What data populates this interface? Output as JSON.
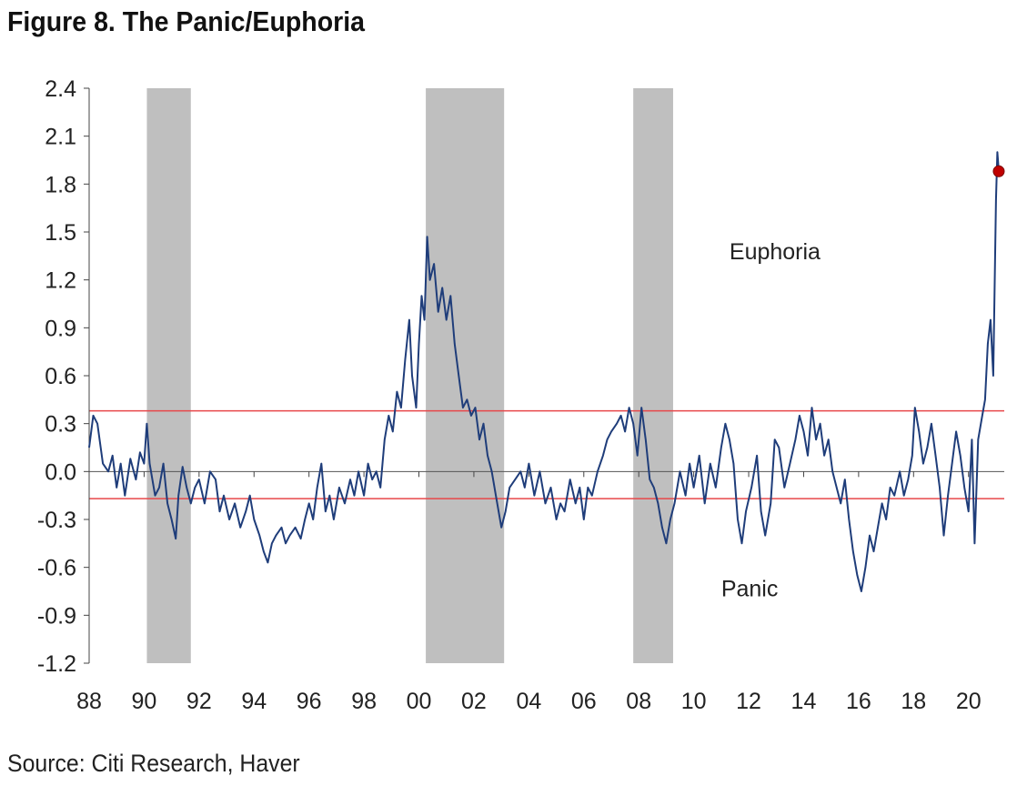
{
  "title": "Figure 8. The Panic/Euphoria",
  "source": "Source: Citi Research, Haver",
  "chart_data": {
    "type": "line",
    "title": "Figure 8. The Panic/Euphoria",
    "xlabel": "",
    "ylabel": "",
    "xlim": [
      1988.0,
      2021.3
    ],
    "ylim": [
      -1.2,
      2.4
    ],
    "x_tick_labels": [
      "88",
      "90",
      "92",
      "94",
      "96",
      "98",
      "00",
      "02",
      "04",
      "06",
      "08",
      "10",
      "12",
      "14",
      "16",
      "18",
      "20"
    ],
    "x_tick_years": [
      1988,
      1990,
      1992,
      1994,
      1996,
      1998,
      2000,
      2002,
      2004,
      2006,
      2008,
      2010,
      2012,
      2014,
      2016,
      2018,
      2020
    ],
    "y_ticks": [
      2.4,
      2.1,
      1.8,
      1.5,
      1.2,
      0.9,
      0.6,
      0.3,
      0.0,
      -0.3,
      -0.6,
      -0.9,
      -1.2
    ],
    "y_tick_labels": [
      "2.4",
      "2.1",
      "1.8",
      "1.5",
      "1.2",
      "0.9",
      "0.6",
      "0.3",
      "0.0",
      "-0.3",
      "-0.6",
      "-0.9",
      "-1.2"
    ],
    "reference_lines": [
      {
        "y": 0.38,
        "color": "#e8474a"
      },
      {
        "y": -0.17,
        "color": "#e8474a"
      }
    ],
    "zero_line": {
      "y": 0.0,
      "color": "#555555"
    },
    "recession_bands": [
      {
        "start": 1990.1,
        "end": 1991.7
      },
      {
        "start": 2000.25,
        "end": 2003.1
      },
      {
        "start": 2007.8,
        "end": 2009.25
      }
    ],
    "annotations": [
      {
        "text": "Euphoria",
        "x": 2011.3,
        "y": 1.33
      },
      {
        "text": "Panic",
        "x": 2011.0,
        "y": -0.78
      }
    ],
    "last_point": {
      "x": 2021.1,
      "y": 1.88,
      "color": "#c00000"
    },
    "series": [
      {
        "color": "#1f3d7a",
        "points": [
          [
            1988.0,
            0.15
          ],
          [
            1988.15,
            0.35
          ],
          [
            1988.3,
            0.3
          ],
          [
            1988.5,
            0.05
          ],
          [
            1988.7,
            0.0
          ],
          [
            1988.85,
            0.1
          ],
          [
            1989.0,
            -0.1
          ],
          [
            1989.15,
            0.05
          ],
          [
            1989.3,
            -0.15
          ],
          [
            1989.5,
            0.08
          ],
          [
            1989.7,
            -0.05
          ],
          [
            1989.85,
            0.12
          ],
          [
            1990.0,
            0.05
          ],
          [
            1990.1,
            0.3
          ],
          [
            1990.2,
            0.05
          ],
          [
            1990.4,
            -0.15
          ],
          [
            1990.55,
            -0.1
          ],
          [
            1990.7,
            0.05
          ],
          [
            1990.85,
            -0.2
          ],
          [
            1991.0,
            -0.3
          ],
          [
            1991.15,
            -0.42
          ],
          [
            1991.25,
            -0.15
          ],
          [
            1991.4,
            0.03
          ],
          [
            1991.55,
            -0.1
          ],
          [
            1991.7,
            -0.2
          ],
          [
            1991.85,
            -0.1
          ],
          [
            1992.0,
            -0.05
          ],
          [
            1992.2,
            -0.2
          ],
          [
            1992.4,
            0.0
          ],
          [
            1992.6,
            -0.05
          ],
          [
            1992.75,
            -0.25
          ],
          [
            1992.9,
            -0.15
          ],
          [
            1993.1,
            -0.3
          ],
          [
            1993.3,
            -0.2
          ],
          [
            1993.5,
            -0.35
          ],
          [
            1993.7,
            -0.25
          ],
          [
            1993.85,
            -0.15
          ],
          [
            1994.0,
            -0.3
          ],
          [
            1994.2,
            -0.4
          ],
          [
            1994.35,
            -0.5
          ],
          [
            1994.5,
            -0.57
          ],
          [
            1994.65,
            -0.45
          ],
          [
            1994.8,
            -0.4
          ],
          [
            1995.0,
            -0.35
          ],
          [
            1995.15,
            -0.45
          ],
          [
            1995.3,
            -0.4
          ],
          [
            1995.5,
            -0.35
          ],
          [
            1995.7,
            -0.42
          ],
          [
            1995.85,
            -0.3
          ],
          [
            1996.0,
            -0.2
          ],
          [
            1996.15,
            -0.3
          ],
          [
            1996.3,
            -0.1
          ],
          [
            1996.45,
            0.05
          ],
          [
            1996.6,
            -0.25
          ],
          [
            1996.75,
            -0.15
          ],
          [
            1996.9,
            -0.3
          ],
          [
            1997.1,
            -0.1
          ],
          [
            1997.3,
            -0.2
          ],
          [
            1997.5,
            -0.05
          ],
          [
            1997.65,
            -0.15
          ],
          [
            1997.8,
            0.0
          ],
          [
            1998.0,
            -0.15
          ],
          [
            1998.15,
            0.05
          ],
          [
            1998.3,
            -0.05
          ],
          [
            1998.45,
            0.0
          ],
          [
            1998.6,
            -0.1
          ],
          [
            1998.75,
            0.2
          ],
          [
            1998.9,
            0.35
          ],
          [
            1999.05,
            0.25
          ],
          [
            1999.2,
            0.5
          ],
          [
            1999.35,
            0.4
          ],
          [
            1999.5,
            0.7
          ],
          [
            1999.65,
            0.95
          ],
          [
            1999.75,
            0.6
          ],
          [
            1999.9,
            0.4
          ],
          [
            2000.0,
            0.8
          ],
          [
            2000.1,
            1.1
          ],
          [
            2000.2,
            0.95
          ],
          [
            2000.3,
            1.47
          ],
          [
            2000.4,
            1.2
          ],
          [
            2000.55,
            1.3
          ],
          [
            2000.7,
            1.0
          ],
          [
            2000.85,
            1.15
          ],
          [
            2001.0,
            0.95
          ],
          [
            2001.15,
            1.1
          ],
          [
            2001.3,
            0.8
          ],
          [
            2001.45,
            0.6
          ],
          [
            2001.6,
            0.4
          ],
          [
            2001.75,
            0.45
          ],
          [
            2001.9,
            0.35
          ],
          [
            2002.05,
            0.4
          ],
          [
            2002.2,
            0.2
          ],
          [
            2002.35,
            0.3
          ],
          [
            2002.5,
            0.1
          ],
          [
            2002.65,
            0.0
          ],
          [
            2002.8,
            -0.15
          ],
          [
            2003.0,
            -0.35
          ],
          [
            2003.15,
            -0.25
          ],
          [
            2003.3,
            -0.1
          ],
          [
            2003.5,
            -0.05
          ],
          [
            2003.7,
            0.0
          ],
          [
            2003.85,
            -0.1
          ],
          [
            2004.0,
            0.05
          ],
          [
            2004.2,
            -0.15
          ],
          [
            2004.4,
            0.0
          ],
          [
            2004.6,
            -0.2
          ],
          [
            2004.8,
            -0.1
          ],
          [
            2005.0,
            -0.3
          ],
          [
            2005.15,
            -0.2
          ],
          [
            2005.3,
            -0.25
          ],
          [
            2005.5,
            -0.05
          ],
          [
            2005.7,
            -0.2
          ],
          [
            2005.85,
            -0.1
          ],
          [
            2006.0,
            -0.3
          ],
          [
            2006.15,
            -0.1
          ],
          [
            2006.3,
            -0.15
          ],
          [
            2006.5,
            0.0
          ],
          [
            2006.7,
            0.1
          ],
          [
            2006.85,
            0.2
          ],
          [
            2007.0,
            0.25
          ],
          [
            2007.2,
            0.3
          ],
          [
            2007.35,
            0.35
          ],
          [
            2007.5,
            0.25
          ],
          [
            2007.65,
            0.4
          ],
          [
            2007.8,
            0.3
          ],
          [
            2007.95,
            0.1
          ],
          [
            2008.1,
            0.4
          ],
          [
            2008.25,
            0.2
          ],
          [
            2008.4,
            -0.05
          ],
          [
            2008.55,
            -0.1
          ],
          [
            2008.7,
            -0.2
          ],
          [
            2008.85,
            -0.35
          ],
          [
            2009.0,
            -0.45
          ],
          [
            2009.15,
            -0.3
          ],
          [
            2009.3,
            -0.2
          ],
          [
            2009.5,
            0.0
          ],
          [
            2009.7,
            -0.15
          ],
          [
            2009.85,
            0.05
          ],
          [
            2010.0,
            -0.1
          ],
          [
            2010.2,
            0.1
          ],
          [
            2010.4,
            -0.2
          ],
          [
            2010.6,
            0.05
          ],
          [
            2010.8,
            -0.1
          ],
          [
            2011.0,
            0.15
          ],
          [
            2011.15,
            0.3
          ],
          [
            2011.3,
            0.2
          ],
          [
            2011.45,
            0.05
          ],
          [
            2011.6,
            -0.3
          ],
          [
            2011.75,
            -0.45
          ],
          [
            2011.9,
            -0.25
          ],
          [
            2012.1,
            -0.1
          ],
          [
            2012.3,
            0.1
          ],
          [
            2012.45,
            -0.25
          ],
          [
            2012.6,
            -0.4
          ],
          [
            2012.8,
            -0.2
          ],
          [
            2012.95,
            0.2
          ],
          [
            2013.1,
            0.15
          ],
          [
            2013.3,
            -0.1
          ],
          [
            2013.5,
            0.05
          ],
          [
            2013.7,
            0.2
          ],
          [
            2013.85,
            0.35
          ],
          [
            2014.0,
            0.25
          ],
          [
            2014.15,
            0.1
          ],
          [
            2014.3,
            0.4
          ],
          [
            2014.45,
            0.2
          ],
          [
            2014.6,
            0.3
          ],
          [
            2014.75,
            0.1
          ],
          [
            2014.9,
            0.2
          ],
          [
            2015.05,
            0.0
          ],
          [
            2015.2,
            -0.1
          ],
          [
            2015.35,
            -0.2
          ],
          [
            2015.5,
            -0.05
          ],
          [
            2015.65,
            -0.3
          ],
          [
            2015.8,
            -0.5
          ],
          [
            2015.95,
            -0.65
          ],
          [
            2016.1,
            -0.75
          ],
          [
            2016.25,
            -0.6
          ],
          [
            2016.4,
            -0.4
          ],
          [
            2016.55,
            -0.5
          ],
          [
            2016.7,
            -0.35
          ],
          [
            2016.85,
            -0.2
          ],
          [
            2017.0,
            -0.3
          ],
          [
            2017.15,
            -0.1
          ],
          [
            2017.3,
            -0.15
          ],
          [
            2017.5,
            0.0
          ],
          [
            2017.65,
            -0.15
          ],
          [
            2017.8,
            -0.05
          ],
          [
            2017.95,
            0.1
          ],
          [
            2018.05,
            0.4
          ],
          [
            2018.2,
            0.25
          ],
          [
            2018.35,
            0.05
          ],
          [
            2018.5,
            0.15
          ],
          [
            2018.65,
            0.3
          ],
          [
            2018.8,
            0.1
          ],
          [
            2018.95,
            -0.1
          ],
          [
            2019.1,
            -0.4
          ],
          [
            2019.25,
            -0.15
          ],
          [
            2019.4,
            0.05
          ],
          [
            2019.55,
            0.25
          ],
          [
            2019.7,
            0.1
          ],
          [
            2019.85,
            -0.1
          ],
          [
            2020.0,
            -0.25
          ],
          [
            2020.12,
            0.2
          ],
          [
            2020.22,
            -0.45
          ],
          [
            2020.35,
            0.2
          ],
          [
            2020.5,
            0.35
          ],
          [
            2020.6,
            0.45
          ],
          [
            2020.7,
            0.8
          ],
          [
            2020.8,
            0.95
          ],
          [
            2020.9,
            0.6
          ],
          [
            2021.0,
            1.7
          ],
          [
            2021.05,
            2.0
          ],
          [
            2021.1,
            1.88
          ]
        ]
      }
    ]
  }
}
